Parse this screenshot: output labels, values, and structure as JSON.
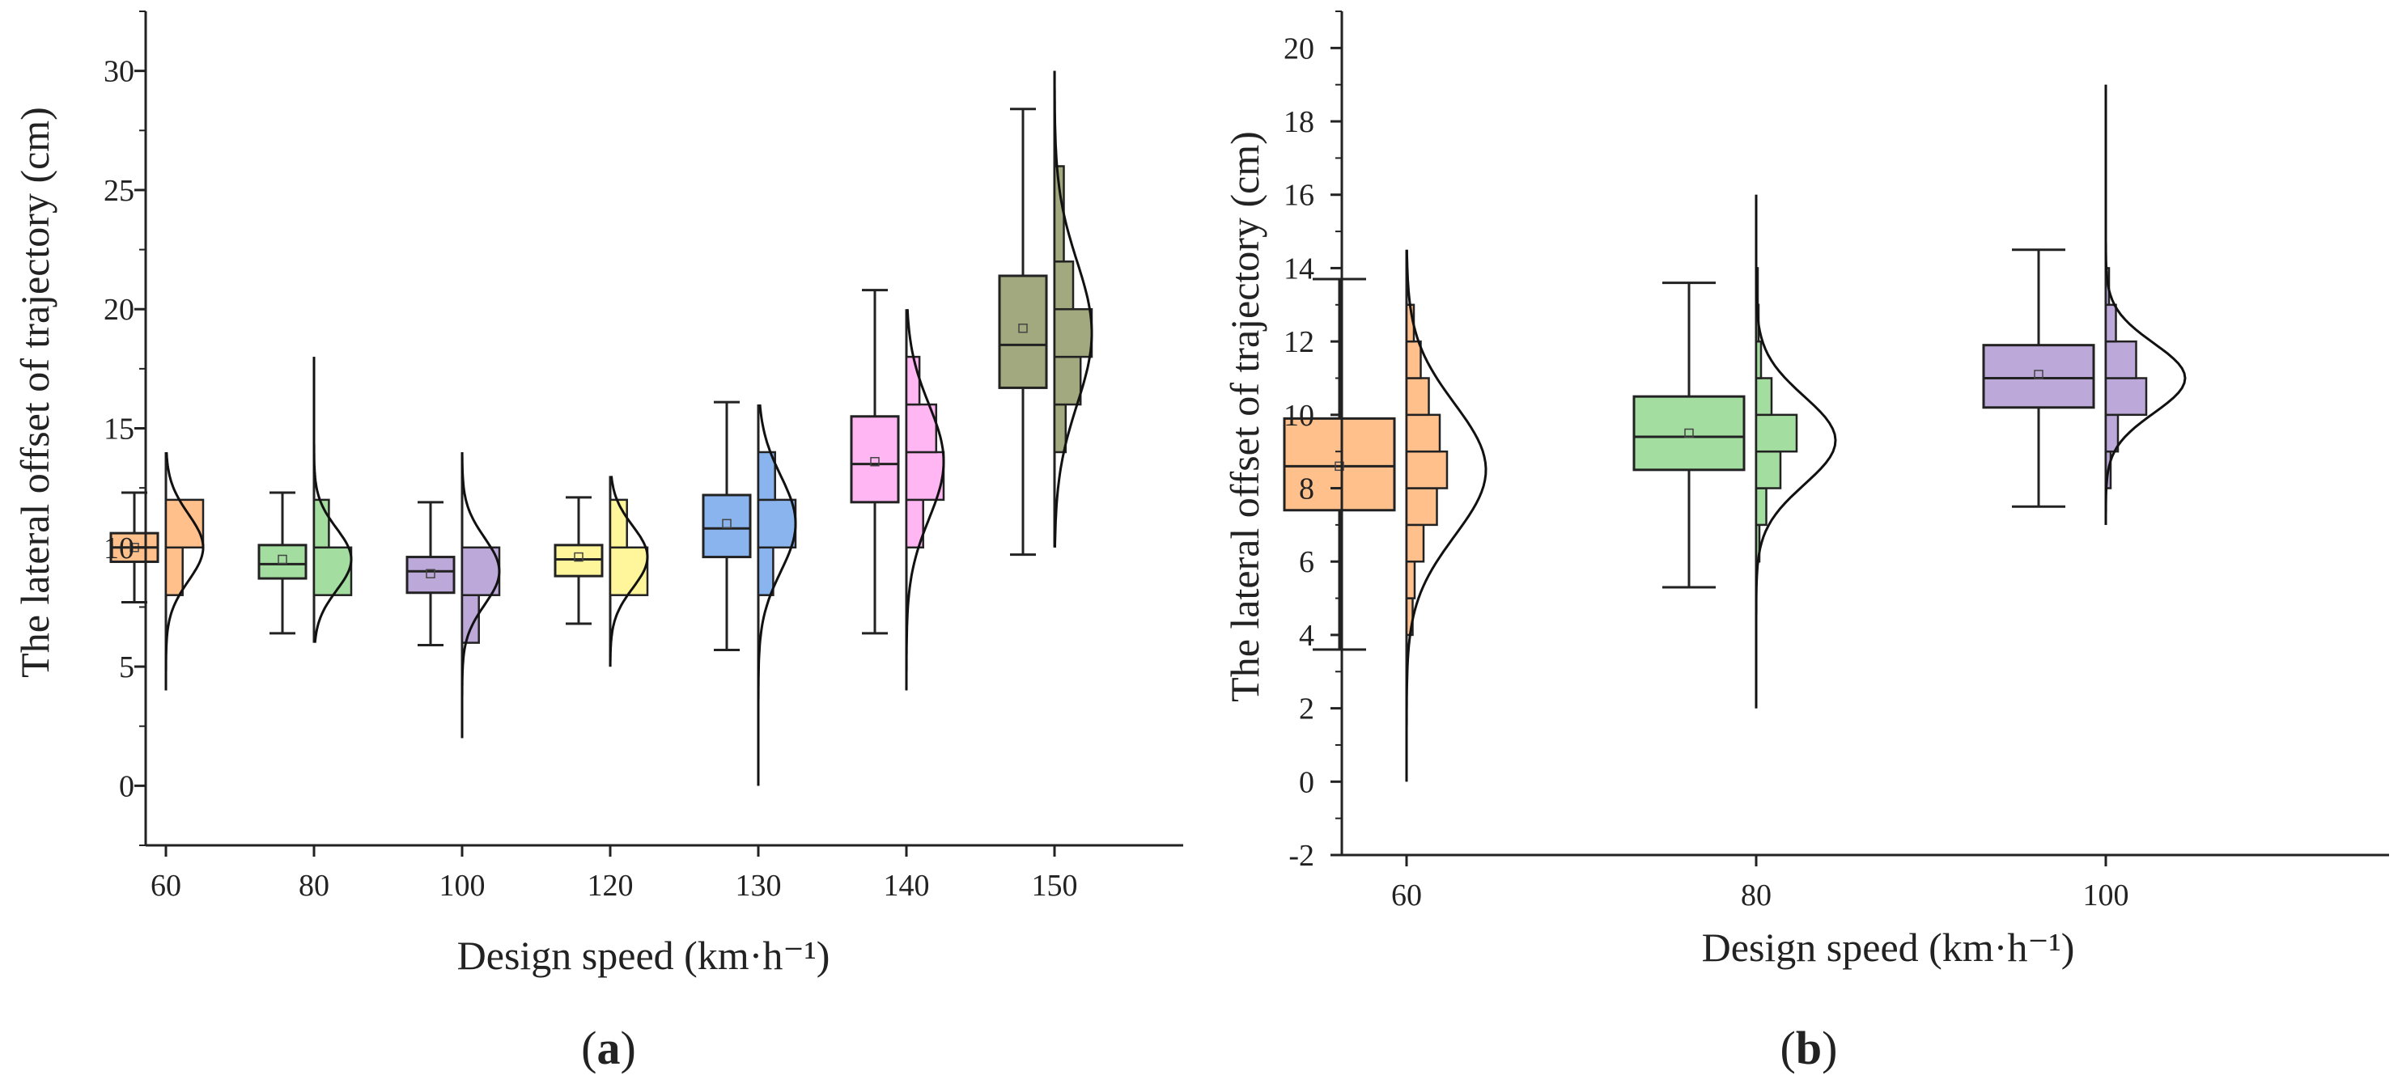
{
  "panels": [
    {
      "id": "a",
      "label": "(a)",
      "label_parts": [
        "(",
        "a",
        ")"
      ],
      "xlabel": "Design speed (km·h⁻¹)",
      "ylabel": "The lateral offset of trajectory (cm)",
      "yticks": [
        0,
        5,
        10,
        15,
        20,
        25,
        30
      ],
      "ylim": [
        -2.5,
        32.5
      ],
      "colors": [
        "#FFC08C",
        "#A3DDA0",
        "#BCA9D9",
        "#FFF59A",
        "#8AB4EE",
        "#FFB6F2",
        "#A3A97E"
      ],
      "chart_data": {
        "type": "box-histogram",
        "categories": [
          "60",
          "80",
          "100",
          "120",
          "130",
          "140",
          "150"
        ],
        "boxes": [
          {
            "category": "60",
            "whisker_low": 7.7,
            "q1": 9.4,
            "median": 10.0,
            "q3": 10.6,
            "whisker_high": 12.3,
            "mean": 10.0
          },
          {
            "category": "80",
            "whisker_low": 6.4,
            "q1": 8.7,
            "median": 9.3,
            "q3": 10.1,
            "whisker_high": 12.3,
            "mean": 9.5
          },
          {
            "category": "100",
            "whisker_low": 5.9,
            "q1": 8.1,
            "median": 9.0,
            "q3": 9.6,
            "whisker_high": 11.9,
            "mean": 8.9
          },
          {
            "category": "120",
            "whisker_low": 6.8,
            "q1": 8.8,
            "median": 9.5,
            "q3": 10.1,
            "whisker_high": 12.1,
            "mean": 9.6
          },
          {
            "category": "130",
            "whisker_low": 5.7,
            "q1": 9.6,
            "median": 10.8,
            "q3": 12.2,
            "whisker_high": 16.1,
            "mean": 11.0
          },
          {
            "category": "140",
            "whisker_low": 6.4,
            "q1": 11.9,
            "median": 13.5,
            "q3": 15.5,
            "whisker_high": 20.8,
            "mean": 13.6
          },
          {
            "category": "150",
            "whisker_low": 9.7,
            "q1": 16.7,
            "median": 18.5,
            "q3": 21.4,
            "whisker_high": 28.4,
            "mean": 19.2
          }
        ],
        "histograms": [
          {
            "category": "60",
            "bins": [
              {
                "low": 8,
                "high": 10,
                "share": 0.45
              },
              {
                "low": 10,
                "high": 12,
                "share": 1.0
              }
            ],
            "data_range": [
              4,
              14
            ],
            "peak": 10.0,
            "sd": 1.4
          },
          {
            "category": "80",
            "bins": [
              {
                "low": 8,
                "high": 10,
                "share": 1.0
              },
              {
                "low": 10,
                "high": 12,
                "share": 0.4
              }
            ],
            "data_range": [
              6,
              18
            ],
            "peak": 9.5,
            "sd": 1.3
          },
          {
            "category": "100",
            "bins": [
              {
                "low": 6,
                "high": 8,
                "share": 0.45
              },
              {
                "low": 8,
                "high": 10,
                "share": 1.0
              }
            ],
            "data_range": [
              2,
              14
            ],
            "peak": 9.0,
            "sd": 1.4
          },
          {
            "category": "120",
            "bins": [
              {
                "low": 8,
                "high": 10,
                "share": 1.0
              },
              {
                "low": 10,
                "high": 12,
                "share": 0.45
              }
            ],
            "data_range": [
              5,
              13
            ],
            "peak": 9.6,
            "sd": 1.3
          },
          {
            "category": "130",
            "bins": [
              {
                "low": 8,
                "high": 10,
                "share": 0.4
              },
              {
                "low": 10,
                "high": 12,
                "share": 1.0
              },
              {
                "low": 12,
                "high": 14,
                "share": 0.45
              }
            ],
            "data_range": [
              0,
              16
            ],
            "peak": 11.0,
            "sd": 2.0
          },
          {
            "category": "140",
            "bins": [
              {
                "low": 10,
                "high": 12,
                "share": 0.45
              },
              {
                "low": 12,
                "high": 14,
                "share": 1.0
              },
              {
                "low": 14,
                "high": 16,
                "share": 0.8
              },
              {
                "low": 16,
                "high": 18,
                "share": 0.35
              }
            ],
            "data_range": [
              4,
              20
            ],
            "peak": 13.6,
            "sd": 2.4
          },
          {
            "category": "150",
            "bins": [
              {
                "low": 14,
                "high": 16,
                "share": 0.3
              },
              {
                "low": 16,
                "high": 18,
                "share": 0.7
              },
              {
                "low": 18,
                "high": 20,
                "share": 1.0
              },
              {
                "low": 20,
                "high": 22,
                "share": 0.5
              },
              {
                "low": 22,
                "high": 26,
                "share": 0.25
              }
            ],
            "data_range": [
              10,
              30
            ],
            "peak": 19.0,
            "sd": 3.0
          }
        ]
      }
    },
    {
      "id": "b",
      "label": "(b)",
      "label_parts": [
        "(",
        "b",
        ")"
      ],
      "xlabel": "Design speed (km·h⁻¹)",
      "ylabel": "The lateral offset of trajectory (cm)",
      "yticks": [
        -2,
        0,
        2,
        4,
        6,
        8,
        10,
        12,
        14,
        16,
        18,
        20
      ],
      "ylim": [
        -2,
        21
      ],
      "colors": [
        "#FFC08C",
        "#A3DDA0",
        "#BCA9D9"
      ],
      "chart_data": {
        "type": "box-histogram",
        "categories": [
          "60",
          "80",
          "100"
        ],
        "boxes": [
          {
            "category": "60",
            "whisker_low": 3.6,
            "q1": 7.4,
            "median": 8.6,
            "q3": 9.9,
            "whisker_high": 13.7,
            "mean": 8.6
          },
          {
            "category": "80",
            "whisker_low": 5.3,
            "q1": 8.5,
            "median": 9.4,
            "q3": 10.5,
            "whisker_high": 13.6,
            "mean": 9.5
          },
          {
            "category": "100",
            "whisker_low": 7.5,
            "q1": 10.2,
            "median": 11.0,
            "q3": 11.9,
            "whisker_high": 14.5,
            "mean": 11.1
          }
        ],
        "histograms": [
          {
            "category": "60",
            "bins": [
              {
                "low": 4,
                "high": 5,
                "share": 0.15
              },
              {
                "low": 5,
                "high": 6,
                "share": 0.2
              },
              {
                "low": 6,
                "high": 7,
                "share": 0.42
              },
              {
                "low": 7,
                "high": 8,
                "share": 0.75
              },
              {
                "low": 8,
                "high": 9,
                "share": 1.0
              },
              {
                "low": 9,
                "high": 10,
                "share": 0.82
              },
              {
                "low": 10,
                "high": 11,
                "share": 0.55
              },
              {
                "low": 11,
                "high": 12,
                "share": 0.35
              },
              {
                "low": 12,
                "high": 13,
                "share": 0.18
              }
            ],
            "data_range": [
              0,
              14.5
            ],
            "peak": 8.5,
            "sd": 1.8
          },
          {
            "category": "80",
            "bins": [
              {
                "low": 6,
                "high": 7,
                "share": 0.08
              },
              {
                "low": 7,
                "high": 8,
                "share": 0.25
              },
              {
                "low": 8,
                "high": 9,
                "share": 0.6
              },
              {
                "low": 9,
                "high": 10,
                "share": 1.0
              },
              {
                "low": 10,
                "high": 11,
                "share": 0.38
              },
              {
                "low": 11,
                "high": 12,
                "share": 0.12
              },
              {
                "low": 12,
                "high": 13,
                "share": 0.06
              },
              {
                "low": 13,
                "high": 14,
                "share": 0.04
              }
            ],
            "data_range": [
              2,
              16
            ],
            "peak": 9.3,
            "sd": 1.2
          },
          {
            "category": "100",
            "bins": [
              {
                "low": 8,
                "high": 9,
                "share": 0.12
              },
              {
                "low": 9,
                "high": 10,
                "share": 0.3
              },
              {
                "low": 10,
                "high": 11,
                "share": 1.0
              },
              {
                "low": 11,
                "high": 12,
                "share": 0.75
              },
              {
                "low": 12,
                "high": 13,
                "share": 0.25
              },
              {
                "low": 13,
                "high": 14,
                "share": 0.08
              }
            ],
            "data_range": [
              7,
              19
            ],
            "peak": 11.0,
            "sd": 0.95
          }
        ]
      }
    }
  ]
}
